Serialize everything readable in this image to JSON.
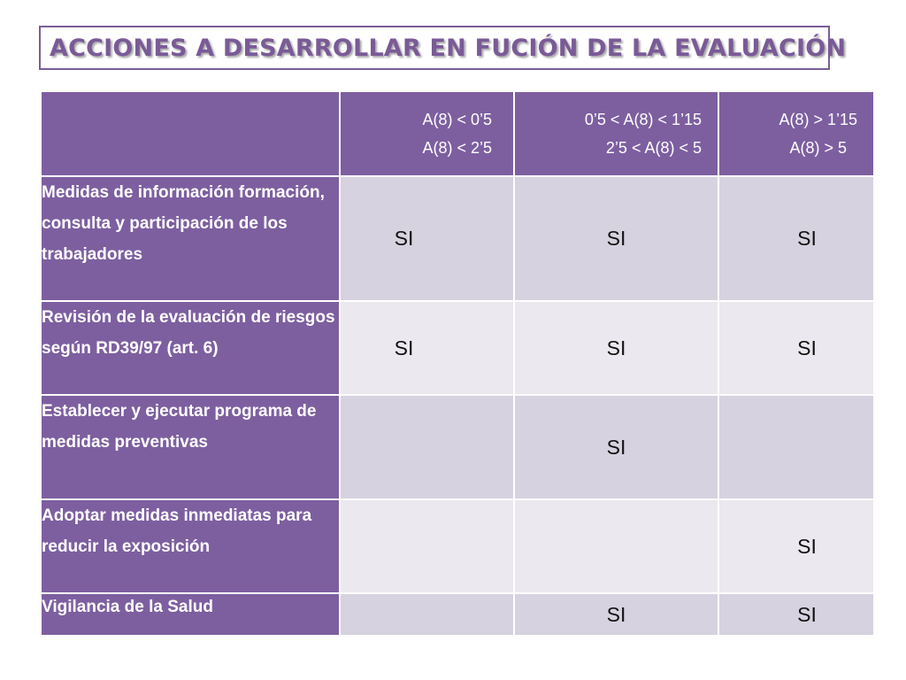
{
  "title": "ACCIONES A DESARROLLAR EN FUCIÓN DE LA EVALUACIÓN",
  "table": {
    "headers": [
      {
        "line1": "",
        "line2": ""
      },
      {
        "line1": "A(8) < 0’5",
        "line2": "A(8) < 2’5"
      },
      {
        "line1": "0’5 < A(8) < 1’15",
        "line2": "2’5 < A(8) < 5"
      },
      {
        "line1": "A(8) > 1’15",
        "line2": "A(8) > 5"
      }
    ],
    "rows": [
      {
        "label": "Medidas de información formación, consulta  y participación de los trabajadores",
        "cells": [
          "SI",
          "SI",
          "SI"
        ]
      },
      {
        "label": "Revisión de la evaluación de riesgos según RD39/97 (art. 6)",
        "cells": [
          "SI",
          "SI",
          "SI"
        ]
      },
      {
        "label": "Establecer y ejecutar programa de medidas preventivas",
        "cells": [
          "",
          "SI",
          ""
        ]
      },
      {
        "label": "Adoptar medidas inmediatas para reducir la exposición",
        "cells": [
          "",
          "",
          "SI"
        ]
      },
      {
        "label": "Vigilancia de la Salud",
        "cells": [
          "",
          "SI",
          "SI"
        ]
      }
    ]
  },
  "colors": {
    "header_purple": "#7d5fa0",
    "title_purple": "#7a5a97",
    "cell_dark": "#d7d2df",
    "cell_light": "#ebe8ef"
  }
}
